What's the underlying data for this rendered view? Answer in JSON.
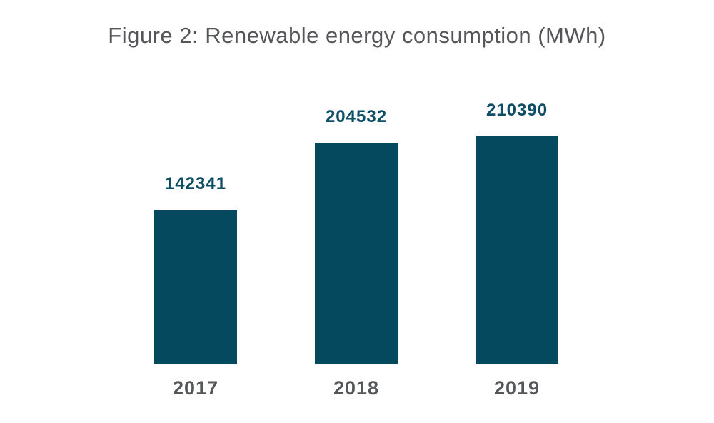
{
  "chart_data": {
    "type": "bar",
    "title": "Figure 2: Renewable energy consumption (MWh)",
    "categories": [
      "2017",
      "2018",
      "2019"
    ],
    "values": [
      142341,
      204532,
      210390
    ],
    "xlabel": "",
    "ylabel": "",
    "ylim": [
      0,
      210390
    ],
    "grid": false,
    "legend": false,
    "background": "#ffffff",
    "colors": {
      "bar": "#04495e",
      "value_label": "#0d4d66",
      "axis_label": "#55565a",
      "title": "#55565a"
    }
  }
}
